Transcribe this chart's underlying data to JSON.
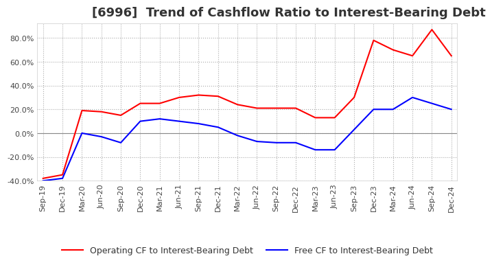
{
  "title": "[6996]  Trend of Cashflow Ratio to Interest-Bearing Debt",
  "x_labels": [
    "Sep-19",
    "Dec-19",
    "Mar-20",
    "Jun-20",
    "Sep-20",
    "Dec-20",
    "Mar-21",
    "Jun-21",
    "Sep-21",
    "Dec-21",
    "Mar-22",
    "Jun-22",
    "Sep-22",
    "Dec-22",
    "Mar-23",
    "Jun-23",
    "Sep-23",
    "Dec-23",
    "Mar-24",
    "Jun-24",
    "Sep-24",
    "Dec-24"
  ],
  "operating_cf": [
    -38,
    -35,
    19,
    18,
    15,
    25,
    25,
    30,
    32,
    31,
    24,
    21,
    21,
    21,
    13,
    13,
    30,
    78,
    70,
    65,
    87,
    65
  ],
  "free_cf": [
    -40,
    -38,
    0,
    -3,
    -8,
    10,
    12,
    10,
    8,
    5,
    -2,
    -7,
    -8,
    -8,
    -14,
    -14,
    3,
    20,
    20,
    30,
    25,
    20
  ],
  "ylim": [
    -40,
    92
  ],
  "yticks": [
    -40,
    -20,
    0,
    20,
    40,
    60,
    80
  ],
  "operating_color": "#ff0000",
  "free_color": "#0000ff",
  "background_color": "#ffffff",
  "grid_color": "#aaaaaa",
  "legend_op": "Operating CF to Interest-Bearing Debt",
  "legend_free": "Free CF to Interest-Bearing Debt",
  "title_fontsize": 13,
  "tick_fontsize": 8,
  "legend_fontsize": 9
}
